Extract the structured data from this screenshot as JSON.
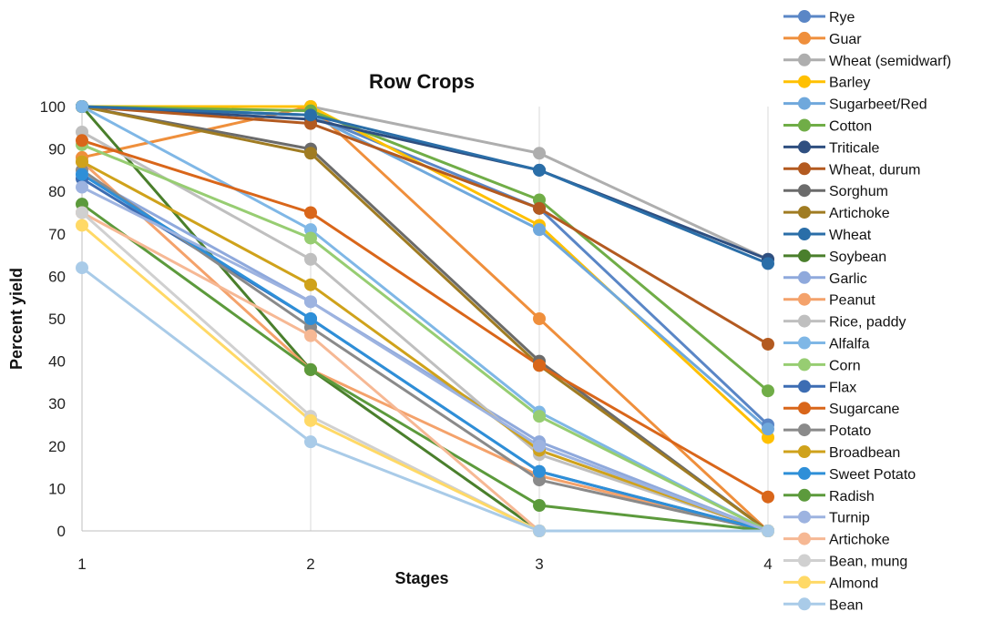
{
  "chart_data": {
    "type": "line",
    "title": "Row Crops",
    "xlabel": "Stages",
    "ylabel": "Percent yield",
    "x": [
      1,
      2,
      3,
      4
    ],
    "ylim": [
      0,
      100
    ],
    "yticks": [
      0,
      10,
      20,
      30,
      40,
      50,
      60,
      70,
      80,
      90,
      100
    ],
    "xticks": [
      1,
      2,
      3,
      4
    ],
    "grid": "vertical",
    "legend_position": "right",
    "markers": "circle",
    "series": [
      {
        "name": "Rye",
        "color": "#5a86c6",
        "values": [
          100,
          98,
          76,
          25
        ]
      },
      {
        "name": "Guar",
        "color": "#ef8f3c",
        "values": [
          88,
          100,
          50,
          0
        ]
      },
      {
        "name": "Wheat (semidwarf)",
        "color": "#aeaeae",
        "values": [
          100,
          100,
          89,
          64
        ]
      },
      {
        "name": "Barley",
        "color": "#ffc000",
        "values": [
          100,
          100,
          72,
          22
        ]
      },
      {
        "name": "Sugarbeet/Red",
        "color": "#6fa8dc",
        "values": [
          100,
          98,
          71,
          24
        ]
      },
      {
        "name": "Cotton",
        "color": "#70ad47",
        "values": [
          100,
          99,
          78,
          33
        ]
      },
      {
        "name": "Triticale",
        "color": "#2f4f80",
        "values": [
          100,
          97,
          85,
          64
        ]
      },
      {
        "name": "Wheat, durum",
        "color": "#b35a20",
        "values": [
          100,
          96,
          76,
          44
        ]
      },
      {
        "name": "Sorghum",
        "color": "#6b6b6b",
        "values": [
          100,
          90,
          40,
          0
        ]
      },
      {
        "name": "Artichoke",
        "color": "#a07c22",
        "values": [
          100,
          89,
          39,
          0
        ]
      },
      {
        "name": "Wheat",
        "color": "#2a6ea8",
        "values": [
          100,
          98,
          85,
          63
        ]
      },
      {
        "name": "Soybean",
        "color": "#4a7f2c",
        "values": [
          100,
          38,
          0,
          0
        ]
      },
      {
        "name": "Garlic",
        "color": "#8fa9dc",
        "values": [
          84,
          54,
          21,
          0
        ]
      },
      {
        "name": "Peanut",
        "color": "#f4a26b",
        "values": [
          87,
          38,
          13,
          0
        ]
      },
      {
        "name": "Rice, paddy",
        "color": "#bfbfbf",
        "values": [
          94,
          64,
          18,
          0
        ]
      },
      {
        "name": "Alfalfa",
        "color": "#7fb7e6",
        "values": [
          100,
          71,
          28,
          0
        ]
      },
      {
        "name": "Corn",
        "color": "#97cd72",
        "values": [
          91,
          69,
          27,
          0
        ]
      },
      {
        "name": "Flax",
        "color": "#3d6db3",
        "values": [
          83,
          50,
          14,
          0
        ]
      },
      {
        "name": "Sugarcane",
        "color": "#d9661a",
        "values": [
          92,
          75,
          39,
          8
        ]
      },
      {
        "name": "Potato",
        "color": "#8a8a8a",
        "values": [
          85,
          48,
          12,
          0
        ]
      },
      {
        "name": "Broadbean",
        "color": "#cfa21b",
        "values": [
          87,
          58,
          19,
          0
        ]
      },
      {
        "name": "Sweet Potato",
        "color": "#2e8fd8",
        "values": [
          84,
          50,
          14,
          0
        ]
      },
      {
        "name": "Radish",
        "color": "#5c9a3c",
        "values": [
          77,
          38,
          6,
          0
        ]
      },
      {
        "name": "Turnip",
        "color": "#9db3e0",
        "values": [
          81,
          54,
          20,
          0
        ]
      },
      {
        "name": "Artichoke",
        "color": "#f6b894",
        "values": [
          75,
          46,
          0,
          0
        ]
      },
      {
        "name": "Bean, mung",
        "color": "#d0d0d0",
        "values": [
          75,
          27,
          0,
          0
        ]
      },
      {
        "name": "Almond",
        "color": "#ffd966",
        "values": [
          72,
          26,
          0,
          0
        ]
      },
      {
        "name": "Bean",
        "color": "#a9cbe8",
        "values": [
          62,
          21,
          0,
          0
        ]
      }
    ]
  }
}
